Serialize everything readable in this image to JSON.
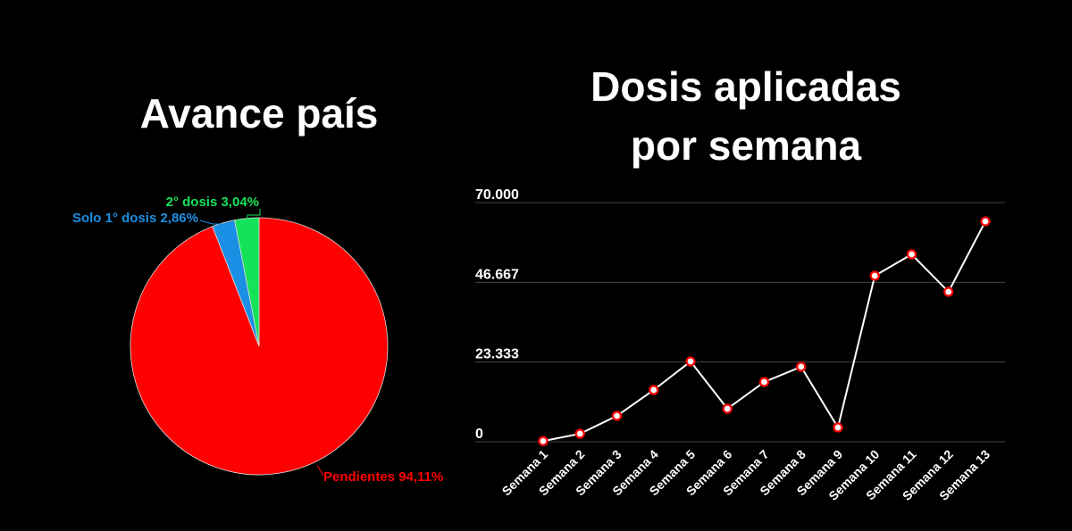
{
  "chart_data": [
    {
      "type": "pie",
      "title": "Avance país",
      "slices": [
        {
          "label": "Pendientes 94,11%",
          "name": "Pendientes",
          "value": 94.11,
          "color": "#ff0000"
        },
        {
          "label": "Solo 1° dosis 2,86%",
          "name": "Solo 1° dosis",
          "value": 2.86,
          "color": "#1a8fe3"
        },
        {
          "label": "2° dosis 3,04%",
          "name": "2° dosis",
          "value": 3.04,
          "color": "#14e35a"
        }
      ]
    },
    {
      "type": "line",
      "title_lines": [
        "Dosis aplicadas",
        "por semana"
      ],
      "categories": [
        "Semana 1",
        "Semana 2",
        "Semana 3",
        "Semana 4",
        "Semana 5",
        "Semana 6",
        "Semana 7",
        "Semana 8",
        "Semana 9",
        "Semana 10",
        "Semana 11",
        "Semana 12",
        "Semana 13"
      ],
      "values": [
        200,
        2350,
        7570,
        15150,
        23500,
        9660,
        17500,
        21940,
        4180,
        48580,
        54850,
        43880,
        64500
      ],
      "yticks": [
        0,
        23333,
        46667,
        70000
      ],
      "ytick_labels": [
        "0",
        "23.333",
        "46.667",
        "70.000"
      ],
      "ylim": [
        0,
        70000
      ],
      "grid": true,
      "line_color": "#ffffff",
      "marker_color": "#ff0000"
    }
  ]
}
